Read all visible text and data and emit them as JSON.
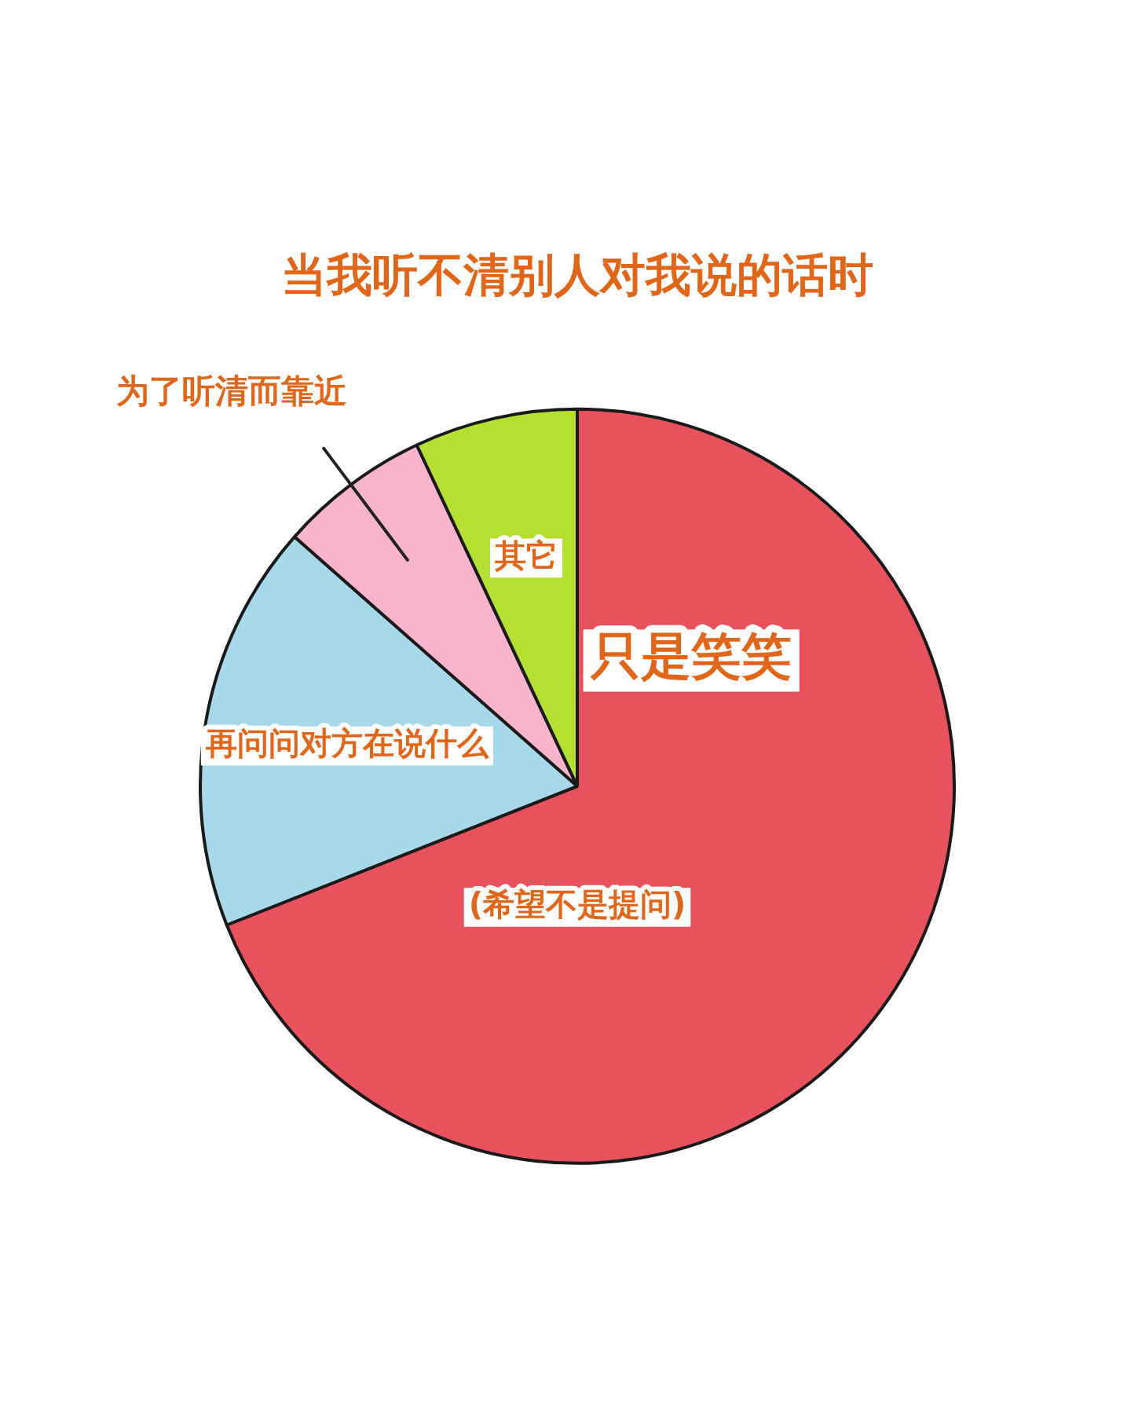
{
  "chart_data": {
    "type": "pie",
    "title": "当我听不清别人对我说的话时",
    "categories": [
      "只是笑笑",
      "再问问对方在说什么",
      "为了听清而靠近",
      "其它"
    ],
    "values": [
      69,
      17.5,
      6.5,
      7
    ],
    "colors": [
      "#e8525c",
      "#a8d9ea",
      "#f7b4cc",
      "#b6e031"
    ],
    "annotations": [
      "(希望不是提问)"
    ],
    "legend": false
  }
}
